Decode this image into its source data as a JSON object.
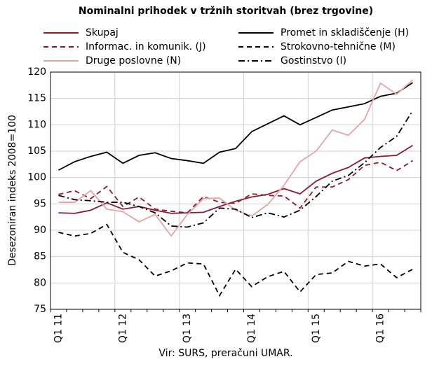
{
  "chart_data": {
    "type": "line",
    "title": "Nominalni prihodek v tržnih storitvah (brez trgovine)",
    "ylabel": "Desezoniran indeks 2008=100",
    "source": "Vir: SURS, preračuni UMAR.",
    "categories": [
      "Q1 11",
      null,
      null,
      null,
      "Q1 12",
      null,
      null,
      null,
      "Q1 13",
      null,
      null,
      null,
      "Q1 14",
      null,
      null,
      null,
      "Q1 15",
      null,
      null,
      null,
      "Q1 16",
      null,
      null
    ],
    "ylim": [
      75,
      120
    ],
    "yticks": [
      75,
      80,
      85,
      90,
      95,
      100,
      105,
      110,
      115,
      120
    ],
    "grid": true,
    "series": [
      {
        "name": "Skupaj",
        "color": "#8b1a2e",
        "dash": "solid",
        "values": [
          93.3,
          93.2,
          93.8,
          95.2,
          94.0,
          94.5,
          93.8,
          93.2,
          93.3,
          93.4,
          94.5,
          95.5,
          96.3,
          96.8,
          97.9,
          96.9,
          99.3,
          100.8,
          101.9,
          103.7,
          104.0,
          104.2,
          106.1
        ]
      },
      {
        "name": "Promet in skladiščenje (H)",
        "color": "#000000",
        "dash": "solid",
        "values": [
          101.4,
          103.0,
          104.0,
          104.8,
          102.7,
          104.2,
          104.7,
          103.6,
          103.2,
          102.7,
          104.8,
          105.5,
          108.7,
          110.2,
          111.7,
          110.0,
          111.4,
          112.8,
          113.4,
          114.0,
          115.4,
          116.0,
          118.0
        ]
      },
      {
        "name": "Informac. in komunik. (J)",
        "color": "#8b1a2e",
        "dash": "dashed",
        "values": [
          96.8,
          97.5,
          96.0,
          98.3,
          94.5,
          96.3,
          94.0,
          93.6,
          93.3,
          96.4,
          95.3,
          95.1,
          96.9,
          96.6,
          96.5,
          94.2,
          98.2,
          98.2,
          99.6,
          102.3,
          102.9,
          101.3,
          103.2
        ]
      },
      {
        "name": "Strokovno-tehnične (M)",
        "color": "#000000",
        "dash": "dashed",
        "values": [
          89.6,
          88.9,
          89.4,
          91.1,
          85.8,
          84.4,
          81.3,
          82.3,
          83.8,
          83.6,
          77.6,
          82.6,
          79.3,
          81.2,
          82.2,
          78.3,
          81.6,
          81.9,
          84.1,
          83.2,
          83.6,
          81.0,
          82.6
        ]
      },
      {
        "name": "Druge poslovne (N)",
        "color": "#e8a3a5",
        "dash": "solid",
        "values": [
          95.3,
          95.3,
          97.5,
          94.0,
          93.5,
          91.6,
          93.0,
          88.9,
          93.0,
          96.0,
          96.1,
          93.8,
          92.7,
          94.9,
          98.5,
          103.0,
          105.0,
          109.0,
          108.0,
          111.0,
          117.9,
          115.8,
          118.5
        ]
      },
      {
        "name": "Gostinstvo (I)",
        "color": "#000000",
        "dash": "dashdot",
        "values": [
          96.6,
          95.8,
          95.6,
          95.3,
          95.3,
          94.5,
          93.3,
          90.8,
          90.6,
          91.4,
          94.2,
          94.0,
          92.4,
          93.3,
          92.5,
          93.8,
          96.4,
          99.3,
          100.4,
          102.8,
          105.7,
          107.8,
          112.7
        ]
      }
    ]
  }
}
